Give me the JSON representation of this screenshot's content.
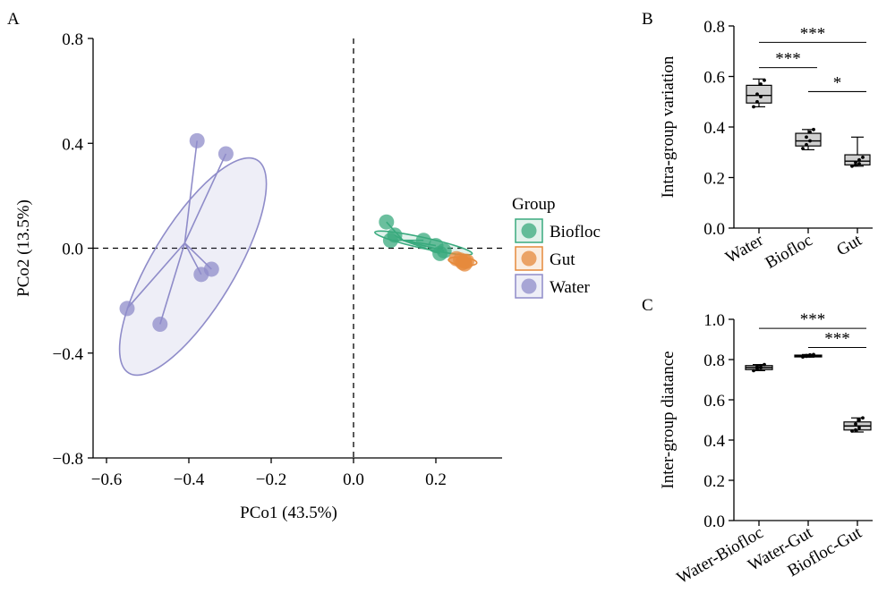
{
  "panels": {
    "A": "A",
    "B": "B",
    "C": "C"
  },
  "chart_data": [
    {
      "panel": "A",
      "type": "scatter",
      "xlabel": "PCo1 (43.5%)",
      "ylabel": "PCo2 (13.5%)",
      "xlim": [
        -0.65,
        0.34
      ],
      "ylim": [
        -0.8,
        0.8
      ],
      "xticks": [
        -0.6,
        -0.4,
        -0.2,
        0.0,
        0.2
      ],
      "xtick_labels": [
        "−0.6",
        "−0.4",
        "−0.2",
        "0.0",
        "0.2"
      ],
      "yticks": [
        -0.8,
        -0.4,
        0.0,
        0.4,
        0.8
      ],
      "ytick_labels": [
        "−0.8",
        "−0.4",
        "0.0",
        "0.4",
        "0.8"
      ],
      "reference_lines": {
        "x": 0,
        "y": 0,
        "style": "dashed"
      },
      "legend": {
        "title": "Group",
        "position": "right"
      },
      "series": [
        {
          "name": "Biofloc",
          "color": "#3aaa7e",
          "centroid": [
            0.12,
            0.03
          ],
          "ellipse": {
            "cx": 0.17,
            "cy": 0.02,
            "rx": 0.125,
            "ry": 0.02,
            "angle_deg": -19
          },
          "points": [
            [
              0.08,
              0.1
            ],
            [
              0.1,
              0.05
            ],
            [
              0.09,
              0.03
            ],
            [
              0.17,
              0.03
            ],
            [
              0.2,
              0.01
            ],
            [
              0.21,
              -0.02
            ],
            [
              0.22,
              -0.01
            ]
          ]
        },
        {
          "name": "Gut",
          "color": "#e58a3c",
          "centroid": [
            0.265,
            -0.05
          ],
          "ellipse": {
            "cx": 0.265,
            "cy": -0.05,
            "rx": 0.035,
            "ry": 0.015,
            "angle_deg": -10
          },
          "points": [
            [
              0.25,
              -0.04
            ],
            [
              0.27,
              -0.05
            ],
            [
              0.265,
              -0.055
            ],
            [
              0.27,
              -0.06
            ],
            [
              0.26,
              -0.045
            ],
            [
              0.275,
              -0.05
            ]
          ]
        },
        {
          "name": "Water",
          "color": "#8f8cc9",
          "centroid": [
            -0.41,
            0.02
          ],
          "ellipse": {
            "cx": -0.39,
            "cy": -0.07,
            "rx": 0.435,
            "ry": 0.11,
            "angle_deg": 69
          },
          "points": [
            [
              -0.38,
              0.41
            ],
            [
              -0.31,
              0.36
            ],
            [
              -0.345,
              -0.08
            ],
            [
              -0.37,
              -0.1
            ],
            [
              -0.55,
              -0.23
            ],
            [
              -0.47,
              -0.29
            ]
          ]
        }
      ]
    },
    {
      "panel": "B",
      "type": "box",
      "ylabel": "Intra-group variation",
      "categories": [
        "Water",
        "Biofloc",
        "Gut"
      ],
      "ylim": [
        0.0,
        0.8
      ],
      "yticks": [
        0.0,
        0.2,
        0.4,
        0.6,
        0.8
      ],
      "ytick_labels": [
        "0.0",
        "0.2",
        "0.4",
        "0.6",
        "0.8"
      ],
      "boxes": [
        {
          "min": 0.48,
          "q1": 0.495,
          "median": 0.525,
          "q3": 0.565,
          "max": 0.59,
          "points": [
            0.48,
            0.5,
            0.52,
            0.53,
            0.57,
            0.585
          ]
        },
        {
          "min": 0.31,
          "q1": 0.325,
          "median": 0.345,
          "q3": 0.375,
          "max": 0.39,
          "points": [
            0.315,
            0.33,
            0.345,
            0.36,
            0.38,
            0.39
          ]
        },
        {
          "min": 0.245,
          "q1": 0.25,
          "median": 0.265,
          "q3": 0.29,
          "max": 0.36,
          "points": [
            0.245,
            0.25,
            0.255,
            0.26,
            0.27,
            0.28
          ]
        }
      ],
      "significance": [
        {
          "from": 0,
          "to": 2,
          "label": "***",
          "y": 0.735
        },
        {
          "from": 0,
          "to": 1,
          "label": "***",
          "y": 0.635
        },
        {
          "from": 1,
          "to": 2,
          "label": "*",
          "y": 0.54
        }
      ]
    },
    {
      "panel": "C",
      "type": "box",
      "ylabel": "Inter-group diatance",
      "categories": [
        "Water-Biofloc",
        "Water-Gut",
        "Biofloc-Gut"
      ],
      "ylim": [
        0.0,
        1.0
      ],
      "yticks": [
        0.0,
        0.2,
        0.4,
        0.6,
        0.8,
        1.0
      ],
      "ytick_labels": [
        "0.0",
        "0.2",
        "0.4",
        "0.6",
        "0.8",
        "1.0"
      ],
      "boxes": [
        {
          "min": 0.745,
          "q1": 0.75,
          "median": 0.76,
          "q3": 0.77,
          "max": 0.775,
          "points": [
            0.745,
            0.755,
            0.76,
            0.765,
            0.77,
            0.775
          ]
        },
        {
          "min": 0.812,
          "q1": 0.815,
          "median": 0.818,
          "q3": 0.822,
          "max": 0.825,
          "points": [
            0.813,
            0.816,
            0.818,
            0.82,
            0.823,
            0.825
          ]
        },
        {
          "min": 0.44,
          "q1": 0.45,
          "median": 0.47,
          "q3": 0.49,
          "max": 0.51,
          "points": [
            0.445,
            0.45,
            0.46,
            0.48,
            0.5,
            0.51
          ]
        }
      ],
      "significance": [
        {
          "from": 0,
          "to": 2,
          "label": "***",
          "y": 0.955
        },
        {
          "from": 1,
          "to": 2,
          "label": "***",
          "y": 0.86
        }
      ]
    }
  ]
}
